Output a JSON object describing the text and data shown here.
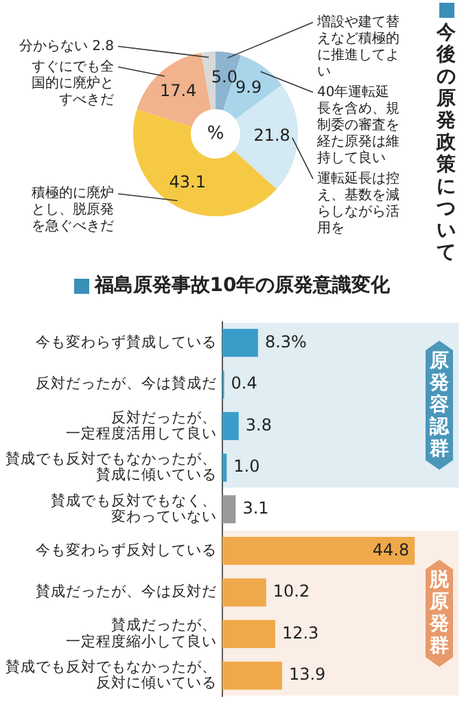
{
  "chart_data": [
    {
      "type": "donut",
      "title": "今後の原発政策について",
      "categories": [
        "増設や建て替えなど積極的に推進してよい",
        "40年運転延長を含め、規制委の審査を経た原発は維持して良い",
        "運転延長は控え、基数を減らしながら活用を",
        "積極的に廃炉とし、脱原発を急ぐべきだ",
        "すぐにでも全国的に廃炉とすべきだ",
        "分からない"
      ],
      "values": [
        5.0,
        9.9,
        21.8,
        43.1,
        17.4,
        2.8
      ],
      "value_labels": [
        "5.0",
        "9.9",
        "21.8",
        "43.1",
        "17.4",
        "2.8"
      ],
      "colors": [
        "#8db4d0",
        "#a9d5ea",
        "#d3e9f3",
        "#f6c945",
        "#f1b28c",
        "#d9d9d9"
      ],
      "annotations": [
        "%"
      ]
    },
    {
      "type": "bar",
      "orientation": "horizontal",
      "title": "福島原発事故10年の原発意識変化",
      "categories": [
        "今も変わらず賛成している",
        "反対だったが、今は賛成だ",
        "反対だったが、一定程度活用して良い",
        "賛成でも反対でもなかったが、賛成に傾いている",
        "賛成でも反対でもなく、変わっていない",
        "今も変わらず反対している",
        "賛成だったが、今は反対だ",
        "賛成だったが、一定程度縮小して良い",
        "賛成でも反対でもなかったが、反対に傾いている"
      ],
      "values": [
        8.3,
        0.4,
        3.8,
        1.0,
        3.1,
        44.8,
        10.2,
        12.3,
        13.9
      ],
      "value_labels": [
        "8.3%",
        "0.4",
        "3.8",
        "1.0",
        "3.1",
        "44.8",
        "10.2",
        "12.3",
        "13.9"
      ],
      "colors": [
        "#3a9dc9",
        "#3a9dc9",
        "#3a9dc9",
        "#3a9dc9",
        "#9a9a9a",
        "#f0a94a",
        "#f0a94a",
        "#f0a94a",
        "#f0a94a"
      ],
      "xlim": [
        0,
        55
      ],
      "tick_labels": "y",
      "bands": [
        {
          "axis": "y",
          "from": "今も変わらず賛成している",
          "to": "賛成でも反対でもなかったが、賛成に傾いている",
          "label": "原発容認群",
          "color": "#4a97ba"
        },
        {
          "axis": "y",
          "from": "今も変わらず反対している",
          "to": "賛成でも反対でもなかったが、反対に傾いている",
          "label": "脱原発群",
          "color": "#e89a6a"
        }
      ]
    }
  ]
}
